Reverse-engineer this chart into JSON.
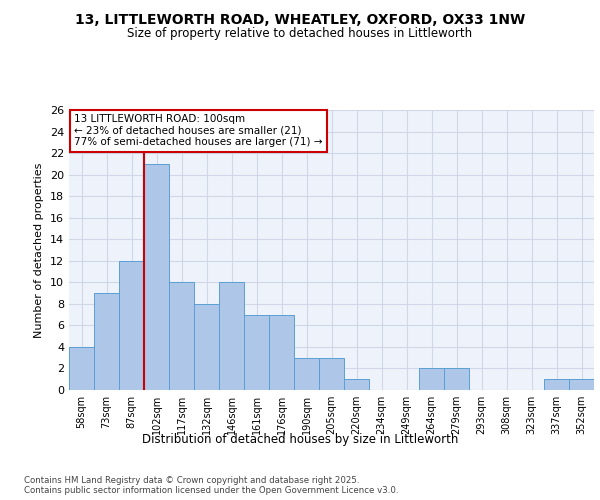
{
  "title_line1": "13, LITTLEWORTH ROAD, WHEATLEY, OXFORD, OX33 1NW",
  "title_line2": "Size of property relative to detached houses in Littleworth",
  "xlabel": "Distribution of detached houses by size in Littleworth",
  "ylabel": "Number of detached properties",
  "bar_labels": [
    "58sqm",
    "73sqm",
    "87sqm",
    "102sqm",
    "117sqm",
    "132sqm",
    "146sqm",
    "161sqm",
    "176sqm",
    "190sqm",
    "205sqm",
    "220sqm",
    "234sqm",
    "249sqm",
    "264sqm",
    "279sqm",
    "293sqm",
    "308sqm",
    "323sqm",
    "337sqm",
    "352sqm"
  ],
  "bar_values": [
    4,
    9,
    12,
    21,
    10,
    8,
    10,
    7,
    7,
    3,
    3,
    1,
    0,
    0,
    2,
    2,
    0,
    0,
    0,
    1,
    1
  ],
  "bar_color": "#aec6e8",
  "bar_edgecolor": "#5a9fd4",
  "grid_color": "#d0d8e8",
  "background_color": "#eef2fb",
  "ref_line_x": 3,
  "ref_line_color": "#cc0000",
  "annotation_text": "13 LITTLEWORTH ROAD: 100sqm\n← 23% of detached houses are smaller (21)\n77% of semi-detached houses are larger (71) →",
  "annotation_box_color": "#cc0000",
  "footer_text": "Contains HM Land Registry data © Crown copyright and database right 2025.\nContains public sector information licensed under the Open Government Licence v3.0.",
  "ylim": [
    0,
    26
  ],
  "yticks": [
    0,
    2,
    4,
    6,
    8,
    10,
    12,
    14,
    16,
    18,
    20,
    22,
    24,
    26
  ]
}
